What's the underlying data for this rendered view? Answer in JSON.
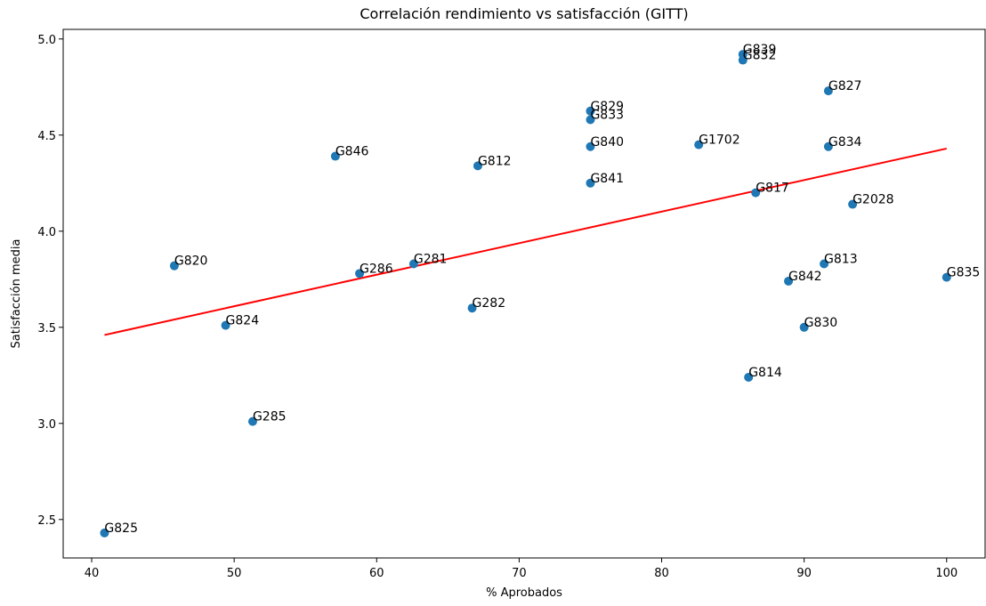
{
  "chart_data": {
    "type": "scatter",
    "title": "Correlación rendimiento vs satisfacción (GITT)",
    "x_label": "% Aprobados",
    "y_label": "Satisfacción media",
    "color": "#1f77b4",
    "point_labels": [
      "G839",
      "G832",
      "G827",
      "G829",
      "G833",
      "G840",
      "G1702",
      "G834",
      "G846",
      "G812",
      "G841",
      "G817",
      "G2028",
      "G820",
      "G813",
      "G281",
      "G286",
      "G835",
      "G842",
      "G282",
      "G824",
      "G830",
      "G814",
      "G285",
      "G825"
    ],
    "x": [
      85.7,
      85.7,
      91.7,
      75.0,
      75.0,
      75.0,
      82.6,
      91.7,
      57.1,
      67.1,
      75.0,
      86.6,
      93.4,
      45.8,
      91.4,
      62.6,
      58.8,
      100,
      88.9,
      66.7,
      49.4,
      90.0,
      86.1,
      51.3,
      40.9
    ],
    "values": [
      4.92,
      4.89,
      4.73,
      4.625,
      4.58,
      4.44,
      4.45,
      4.44,
      4.39,
      4.34,
      4.25,
      4.2,
      4.14,
      3.82,
      3.83,
      3.83,
      3.78,
      3.76,
      3.74,
      3.6,
      3.51,
      3.5,
      3.24,
      3.01,
      2.43
    ],
    "trend_line": {
      "x": [
        40.9,
        100
      ],
      "values": [
        3.46,
        4.43
      ],
      "color": "#ff0000"
    },
    "xlim": [
      38.0,
      102.7
    ],
    "ylim": [
      2.3,
      5.05
    ],
    "xticks": [
      40,
      50,
      60,
      70,
      80,
      90,
      100
    ],
    "yticks": [
      2.5,
      {
        "value": 3,
        "label": "3.0"
      },
      3.5,
      {
        "value": 4,
        "label": "4.0"
      },
      4.5,
      {
        "value": 5,
        "label": "5.0"
      }
    ]
  }
}
